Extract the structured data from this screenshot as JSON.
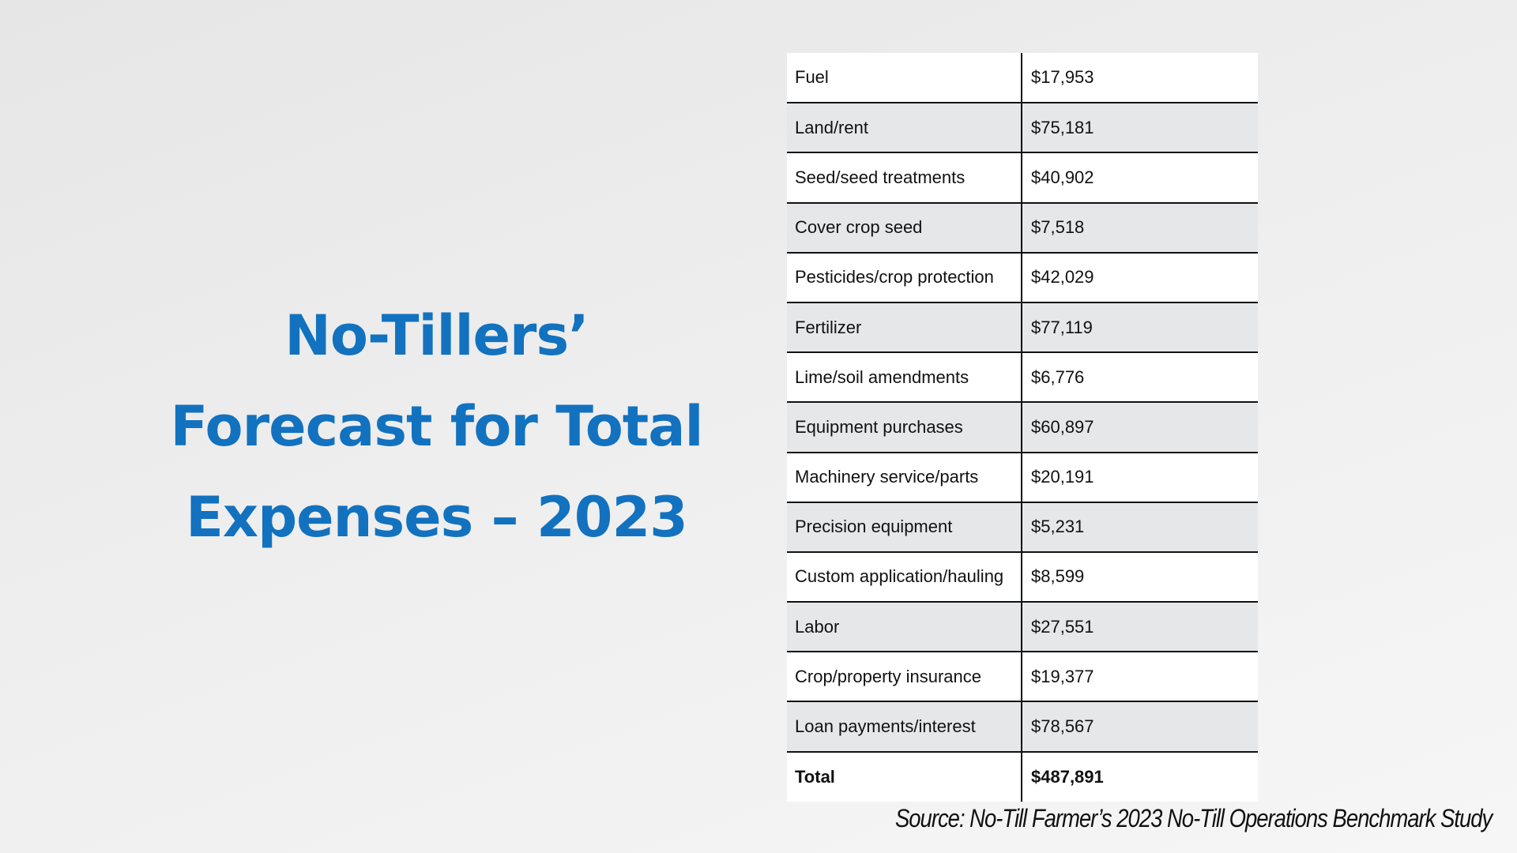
{
  "title": {
    "line1": "No-Tillers’",
    "line2": "Forecast for Total",
    "line3": "Expenses – 2023"
  },
  "table": {
    "rows": [
      {
        "item": "Fuel",
        "amount": "$17,953"
      },
      {
        "item": "Land/rent",
        "amount": "$75,181"
      },
      {
        "item": "Seed/seed treatments",
        "amount": "$40,902"
      },
      {
        "item": "Cover crop seed",
        "amount": "$7,518"
      },
      {
        "item": "Pesticides/crop protection",
        "amount": "$42,029"
      },
      {
        "item": "Fertilizer",
        "amount": "$77,119"
      },
      {
        "item": "Lime/soil amendments",
        "amount": "$6,776"
      },
      {
        "item": "Equipment purchases",
        "amount": "$60,897"
      },
      {
        "item": "Machinery service/parts",
        "amount": "$20,191"
      },
      {
        "item": "Precision equipment",
        "amount": "$5,231"
      },
      {
        "item": "Custom application/hauling",
        "amount": "$8,599"
      },
      {
        "item": "Labor",
        "amount": "$27,551"
      },
      {
        "item": "Crop/property insurance",
        "amount": "$19,377"
      },
      {
        "item": "Loan payments/interest",
        "amount": "$78,567"
      }
    ],
    "total": {
      "item": "Total",
      "amount": "$487,891"
    }
  },
  "source": "Source: No-Till Farmer’s 2023 No-Till Operations Benchmark Study",
  "colors": {
    "title": "#1272bf",
    "shaded_row": "#e6e7e9",
    "rule": "#111111"
  }
}
